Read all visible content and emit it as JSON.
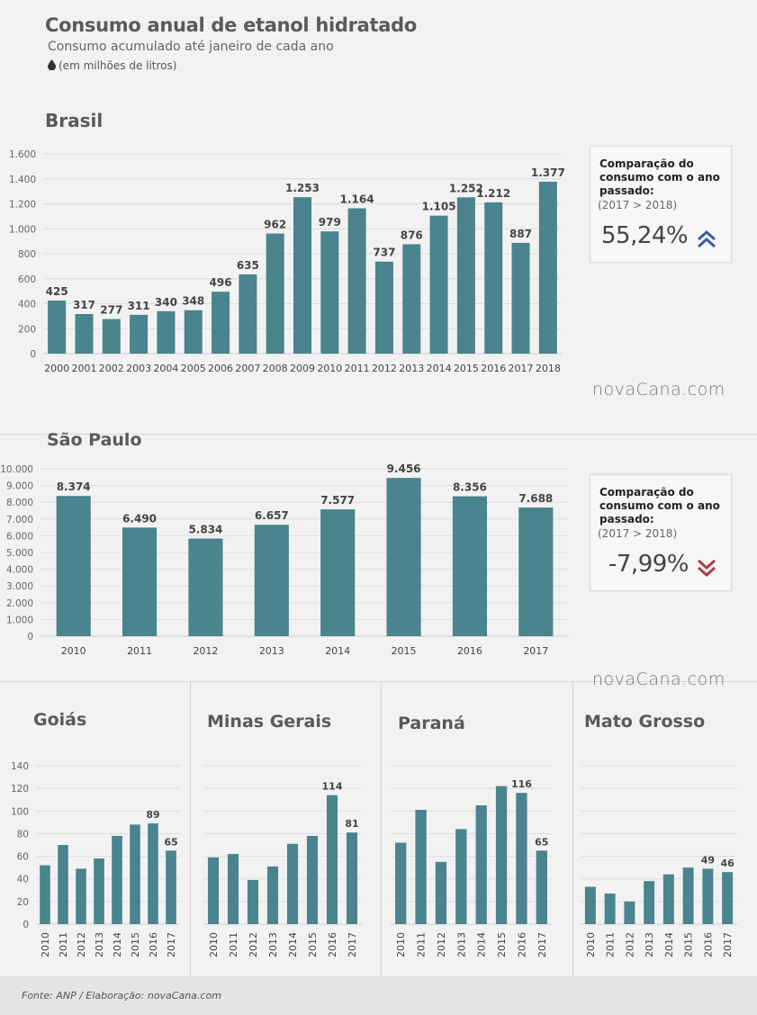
{
  "header": {
    "title": "Consumo anual de etanol hidratado",
    "subtitle": "Consumo acumulado até janeiro de cada ano",
    "unit": "(em milhões de litros)"
  },
  "brand": {
    "watermark": "novaCana.com"
  },
  "colors": {
    "bar": "#4a848e",
    "up_arrow": "#3b5f9e",
    "down_arrow": "#b03a42"
  },
  "comparisons": {
    "brasil": {
      "label": "Comparação do consumo com o ano passado:",
      "period": "(2017 > 2018)",
      "value": "55,24%",
      "direction": "up",
      "icon": "double-chevron-up-icon"
    },
    "sao_paulo": {
      "label": "Comparação do consumo com o ano passado:",
      "period": "(2017 > 2018)",
      "value": "-7,99%",
      "direction": "down",
      "icon": "double-chevron-down-icon"
    }
  },
  "footer": {
    "source": "Fonte: ANP  / Elaboração: novaCana.com"
  },
  "chart_data": [
    {
      "id": "brasil",
      "type": "bar",
      "title": "Brasil",
      "categories": [
        "2000",
        "2001",
        "2002",
        "2003",
        "2004",
        "2005",
        "2006",
        "2007",
        "2008",
        "2009",
        "2010",
        "2011",
        "2012",
        "2013",
        "2014",
        "2015",
        "2016",
        "2017",
        "2018"
      ],
      "values": [
        425,
        317,
        277,
        311,
        340,
        348,
        496,
        635,
        962,
        1253,
        979,
        1164,
        737,
        876,
        1105,
        1252,
        1212,
        887,
        1377
      ],
      "value_labels": [
        "425",
        "317",
        "277",
        "311",
        "340",
        "348",
        "496",
        "635",
        "962",
        "1.253",
        "979",
        "1.164",
        "737",
        "876",
        "1.105",
        "1.252",
        "1.212",
        "887",
        "1.377"
      ],
      "ylim": [
        0,
        1600
      ],
      "yticks": [
        0,
        200,
        400,
        600,
        800,
        1000,
        1200,
        1400,
        1600
      ],
      "ytick_labels": [
        "0",
        "200",
        "400",
        "600",
        "800",
        "1.000",
        "1.200",
        "1.400",
        "1.600"
      ],
      "grid": true,
      "xlabel_rotation": 0
    },
    {
      "id": "sao_paulo",
      "type": "bar",
      "title": "São Paulo",
      "categories": [
        "2010",
        "2011",
        "2012",
        "2013",
        "2014",
        "2015",
        "2016",
        "2017"
      ],
      "values": [
        8374,
        6490,
        5834,
        6657,
        7577,
        9456,
        8356,
        7688
      ],
      "value_labels": [
        "8.374",
        "6.490",
        "5.834",
        "6.657",
        "7.577",
        "9.456",
        "8.356",
        "7.688"
      ],
      "ylim": [
        0,
        10000
      ],
      "yticks": [
        0,
        1000,
        2000,
        3000,
        4000,
        5000,
        6000,
        7000,
        8000,
        9000,
        10000
      ],
      "ytick_labels": [
        "0",
        "1.000",
        "2.000",
        "3.000",
        "4.000",
        "5.000",
        "6.000",
        "7.000",
        "8.000",
        "9.000",
        "10.000"
      ],
      "grid": true,
      "xlabel_rotation": 0
    },
    {
      "id": "goias",
      "type": "bar",
      "title": "Goiás",
      "categories": [
        "2010",
        "2011",
        "2012",
        "2013",
        "2014",
        "2015",
        "2016",
        "2017"
      ],
      "values": [
        52,
        70,
        49,
        58,
        78,
        88,
        89,
        65
      ],
      "value_labels": [
        "",
        "",
        "",
        "",
        "",
        "",
        "89",
        "65"
      ],
      "ylim": [
        0,
        140
      ],
      "yticks": [
        0,
        20,
        40,
        60,
        80,
        100,
        120,
        140
      ],
      "ytick_labels": [
        "0",
        "20",
        "40",
        "60",
        "80",
        "100",
        "120",
        "140"
      ],
      "grid": true,
      "xlabel_rotation": -90
    },
    {
      "id": "minas_gerais",
      "type": "bar",
      "title": "Minas Gerais",
      "categories": [
        "2010",
        "2011",
        "2012",
        "2013",
        "2014",
        "2015",
        "2016",
        "2017"
      ],
      "values": [
        59,
        62,
        39,
        51,
        71,
        78,
        114,
        81
      ],
      "value_labels": [
        "",
        "",
        "",
        "",
        "",
        "",
        "114",
        "81"
      ],
      "ylim": [
        0,
        140
      ],
      "yticks": [
        0,
        20,
        40,
        60,
        80,
        100,
        120,
        140
      ],
      "ytick_labels": [],
      "grid": true,
      "xlabel_rotation": -90
    },
    {
      "id": "parana",
      "type": "bar",
      "title": "Paraná",
      "categories": [
        "2010",
        "2011",
        "2012",
        "2013",
        "2014",
        "2015",
        "2016",
        "2017"
      ],
      "values": [
        72,
        101,
        55,
        84,
        105,
        122,
        116,
        65
      ],
      "value_labels": [
        "",
        "",
        "",
        "",
        "",
        "",
        "116",
        "65"
      ],
      "ylim": [
        0,
        140
      ],
      "yticks": [
        0,
        20,
        40,
        60,
        80,
        100,
        120,
        140
      ],
      "ytick_labels": [],
      "grid": true,
      "xlabel_rotation": -90
    },
    {
      "id": "mato_grosso",
      "type": "bar",
      "title": "Mato Grosso",
      "categories": [
        "2010",
        "2011",
        "2012",
        "2013",
        "2014",
        "2015",
        "2016",
        "2017"
      ],
      "values": [
        33,
        27,
        20,
        38,
        44,
        50,
        49,
        46
      ],
      "value_labels": [
        "",
        "",
        "",
        "",
        "",
        "",
        "49",
        "46"
      ],
      "ylim": [
        0,
        140
      ],
      "yticks": [
        0,
        20,
        40,
        60,
        80,
        100,
        120,
        140
      ],
      "ytick_labels": [],
      "grid": true,
      "xlabel_rotation": -90
    }
  ]
}
